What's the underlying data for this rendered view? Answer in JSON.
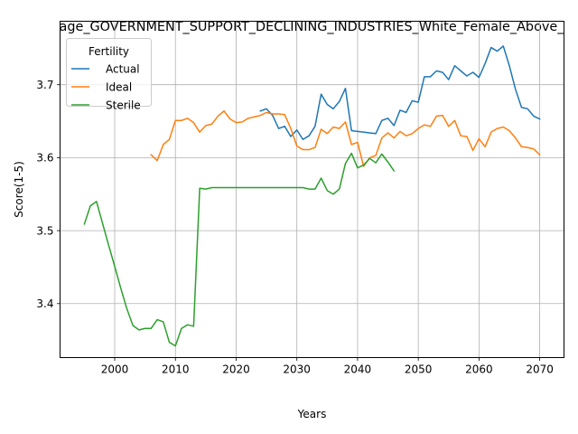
{
  "chart_data": {
    "type": "line",
    "title": "age_GOVERNMENT_SUPPORT_DECLINING_INDUSTRIES_White_Female_Above_",
    "xlabel": "Years",
    "ylabel": "Score(1-5)",
    "xlim": [
      1991,
      2074
    ],
    "ylim": [
      3.326,
      3.787
    ],
    "xticks": [
      2000,
      2010,
      2020,
      2030,
      2040,
      2050,
      2060,
      2070
    ],
    "yticks": [
      3.4,
      3.5,
      3.6,
      3.7
    ],
    "xtick_labels": [
      "2000",
      "2010",
      "2020",
      "2030",
      "2040",
      "2050",
      "2060",
      "2070"
    ],
    "ytick_labels": [
      "3.4",
      "3.5",
      "3.6",
      "3.7"
    ],
    "grid": true,
    "legend": {
      "title": "Fertility",
      "position": "top-left"
    },
    "series": [
      {
        "name": "Actual",
        "color": "#1f77b4",
        "x": [
          2024,
          2025,
          2026,
          2027,
          2028,
          2029,
          2030,
          2031,
          2032,
          2033,
          2034,
          2035,
          2036,
          2037,
          2038,
          2039,
          2040,
          2041,
          2042,
          2043,
          2044,
          2045,
          2046,
          2047,
          2048,
          2049,
          2050,
          2051,
          2052,
          2053,
          2054,
          2055,
          2056,
          2057,
          2058,
          2059,
          2060,
          2061,
          2062,
          2063,
          2064,
          2065,
          2066,
          2067,
          2068,
          2069,
          2070
        ],
        "y": [
          3.664,
          3.667,
          3.658,
          3.64,
          3.643,
          3.629,
          3.638,
          3.625,
          3.63,
          3.643,
          3.687,
          3.673,
          3.667,
          3.677,
          3.695,
          3.637,
          3.636,
          3.635,
          3.634,
          3.633,
          3.651,
          3.654,
          3.644,
          3.665,
          3.662,
          3.678,
          3.676,
          3.711,
          3.711,
          3.719,
          3.717,
          3.707,
          3.726,
          3.719,
          3.712,
          3.717,
          3.71,
          3.729,
          3.751,
          3.746,
          3.753,
          3.726,
          3.694,
          3.669,
          3.667,
          3.657,
          3.653
        ]
      },
      {
        "name": "Ideal",
        "color": "#ff7f0e",
        "x": [
          2006,
          2007,
          2008,
          2009,
          2010,
          2011,
          2012,
          2013,
          2014,
          2015,
          2016,
          2017,
          2018,
          2019,
          2020,
          2021,
          2022,
          2023,
          2024,
          2025,
          2026,
          2027,
          2028,
          2029,
          2030,
          2031,
          2032,
          2033,
          2034,
          2035,
          2036,
          2037,
          2038,
          2039,
          2040,
          2041,
          2042,
          2043,
          2044,
          2045,
          2046,
          2047,
          2048,
          2049,
          2050,
          2051,
          2052,
          2053,
          2054,
          2055,
          2056,
          2057,
          2058,
          2059,
          2060,
          2061,
          2062,
          2063,
          2064,
          2065,
          2066,
          2067,
          2068,
          2069,
          2070
        ],
        "y": [
          3.604,
          3.596,
          3.618,
          3.625,
          3.651,
          3.651,
          3.654,
          3.648,
          3.635,
          3.644,
          3.646,
          3.657,
          3.664,
          3.653,
          3.648,
          3.649,
          3.654,
          3.656,
          3.658,
          3.662,
          3.66,
          3.66,
          3.659,
          3.64,
          3.616,
          3.611,
          3.611,
          3.614,
          3.639,
          3.633,
          3.642,
          3.64,
          3.649,
          3.618,
          3.621,
          3.588,
          3.6,
          3.603,
          3.627,
          3.634,
          3.627,
          3.636,
          3.63,
          3.633,
          3.64,
          3.645,
          3.643,
          3.657,
          3.658,
          3.643,
          3.651,
          3.63,
          3.629,
          3.61,
          3.626,
          3.615,
          3.635,
          3.64,
          3.642,
          3.637,
          3.627,
          3.615,
          3.614,
          3.612,
          3.604
        ]
      },
      {
        "name": "Sterile",
        "color": "#2ca02c",
        "x": [
          1995,
          1996,
          1997,
          1998,
          1999,
          2000,
          2001,
          2002,
          2003,
          2004,
          2005,
          2006,
          2007,
          2008,
          2009,
          2010,
          2011,
          2012,
          2013,
          2014,
          2015,
          2016,
          2017,
          2018,
          2019,
          2020,
          2021,
          2022,
          2023,
          2024,
          2025,
          2026,
          2027,
          2028,
          2029,
          2030,
          2031,
          2032,
          2033,
          2034,
          2035,
          2036,
          2037,
          2038,
          2039,
          2040,
          2041,
          2042,
          2043,
          2044,
          2045,
          2046
        ],
        "y": [
          3.509,
          3.534,
          3.54,
          3.51,
          3.48,
          3.451,
          3.421,
          3.393,
          3.37,
          3.364,
          3.366,
          3.366,
          3.378,
          3.375,
          3.347,
          3.342,
          3.366,
          3.371,
          3.369,
          3.558,
          3.557,
          3.559,
          3.559,
          3.559,
          3.559,
          3.559,
          3.559,
          3.559,
          3.559,
          3.559,
          3.559,
          3.559,
          3.559,
          3.559,
          3.559,
          3.559,
          3.559,
          3.557,
          3.557,
          3.572,
          3.555,
          3.55,
          3.557,
          3.592,
          3.606,
          3.586,
          3.59,
          3.599,
          3.593,
          3.605,
          3.594,
          3.582
        ]
      }
    ]
  }
}
